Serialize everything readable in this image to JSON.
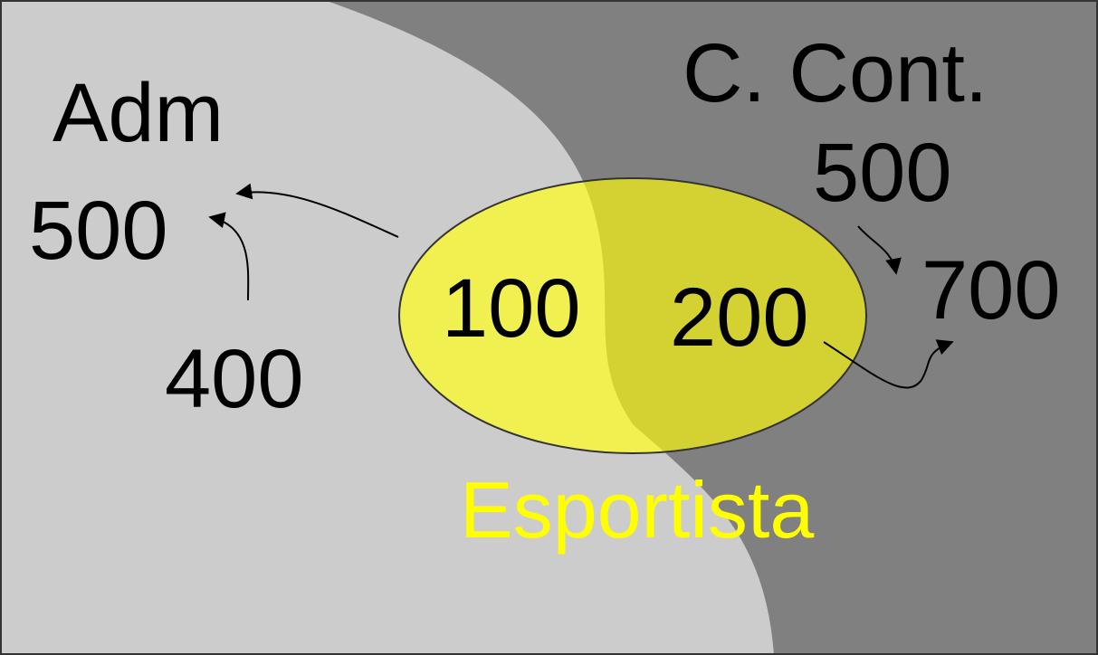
{
  "colors": {
    "adm_region": "#cccccc",
    "cont_region": "#808080",
    "ellipse_fill": "#f0f050",
    "ellipse_overlap": "#d4d232",
    "esportista_text": "#ffff00",
    "text": "#000000"
  },
  "regions": {
    "adm": {
      "label": "Adm",
      "value": "500",
      "sub_value": "400"
    },
    "cont": {
      "label": "C. Cont.",
      "value": "500",
      "sub_value": "700"
    }
  },
  "esportista": {
    "label": "Esportista",
    "adm_part": "100",
    "cont_part": "200"
  }
}
